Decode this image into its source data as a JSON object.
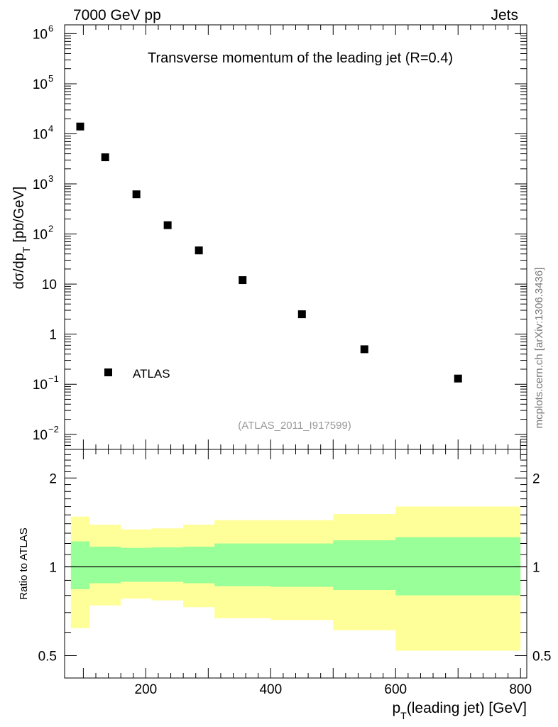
{
  "header": {
    "left": "7000 GeV pp",
    "right": "Jets"
  },
  "watermark": "mcplots.cern.ch [arXiv:1306.3436]",
  "analysis_tag": "(ATLAS_2011_I917599)",
  "colors": {
    "band_inner": "#99ff99",
    "band_outer": "#ffff99",
    "marker": "#000000"
  },
  "chart_data": [
    {
      "type": "scatter",
      "title": "Transverse momentum of the leading jet (R=0.4)",
      "ylabel": "dσ/dp_T [pb/GeV]",
      "ylabel_main": "dσ/dp",
      "ylabel_sub": "T",
      "ylabel_unit": "[pb/GeV]",
      "yscale": "log",
      "ylim": [
        0.005,
        1500000
      ],
      "xlim": [
        70,
        810
      ],
      "legend": {
        "position": "bottom-left",
        "entries": [
          "ATLAS"
        ]
      },
      "y_ticks": [
        {
          "value": 1000000.0,
          "base": "10",
          "exp": "6"
        },
        {
          "value": 100000.0,
          "base": "10",
          "exp": "5"
        },
        {
          "value": 10000.0,
          "base": "10",
          "exp": "4"
        },
        {
          "value": 1000.0,
          "base": "10",
          "exp": "3"
        },
        {
          "value": 100.0,
          "base": "10",
          "exp": "2"
        },
        {
          "value": 10,
          "base": "10",
          "exp": ""
        },
        {
          "value": 1,
          "base": "1",
          "exp": ""
        },
        {
          "value": 0.1,
          "base": "10",
          "exp": "−1"
        },
        {
          "value": 0.01,
          "base": "10",
          "exp": "−2"
        }
      ],
      "series": [
        {
          "name": "ATLAS",
          "x": [
            95,
            135,
            185,
            235,
            285,
            355,
            450,
            550,
            700
          ],
          "y": [
            14000,
            3400,
            620,
            150,
            47,
            12,
            2.5,
            0.5,
            0.13
          ]
        }
      ]
    },
    {
      "type": "area",
      "ylabel": "Ratio to ATLAS",
      "xlabel": "p_T(leading jet) [GeV]",
      "xlabel_main": "p",
      "xlabel_sub": "T",
      "xlabel_rest": "(leading jet) [GeV]",
      "xlim": [
        70,
        810
      ],
      "ylim": [
        0.42,
        2.5
      ],
      "x_tick_labels": [
        "200",
        "400",
        "600",
        "800"
      ],
      "x_ticks": [
        200,
        400,
        600,
        800
      ],
      "y_tick_labels": [
        "2",
        "1",
        "0.5"
      ],
      "y_ticks": [
        2,
        1,
        0.5
      ],
      "reference_line": 1,
      "bin_edges": [
        80,
        110,
        160,
        210,
        260,
        310,
        400,
        500,
        600,
        800
      ],
      "inner_band": {
        "low": [
          0.84,
          0.88,
          0.89,
          0.89,
          0.88,
          0.86,
          0.855,
          0.835,
          0.8
        ],
        "high": [
          1.22,
          1.17,
          1.16,
          1.165,
          1.17,
          1.2,
          1.2,
          1.23,
          1.26
        ]
      },
      "outer_band": {
        "low": [
          0.62,
          0.74,
          0.78,
          0.77,
          0.73,
          0.67,
          0.66,
          0.61,
          0.52
        ],
        "high": [
          1.48,
          1.39,
          1.34,
          1.35,
          1.39,
          1.44,
          1.44,
          1.51,
          1.6
        ]
      }
    }
  ]
}
